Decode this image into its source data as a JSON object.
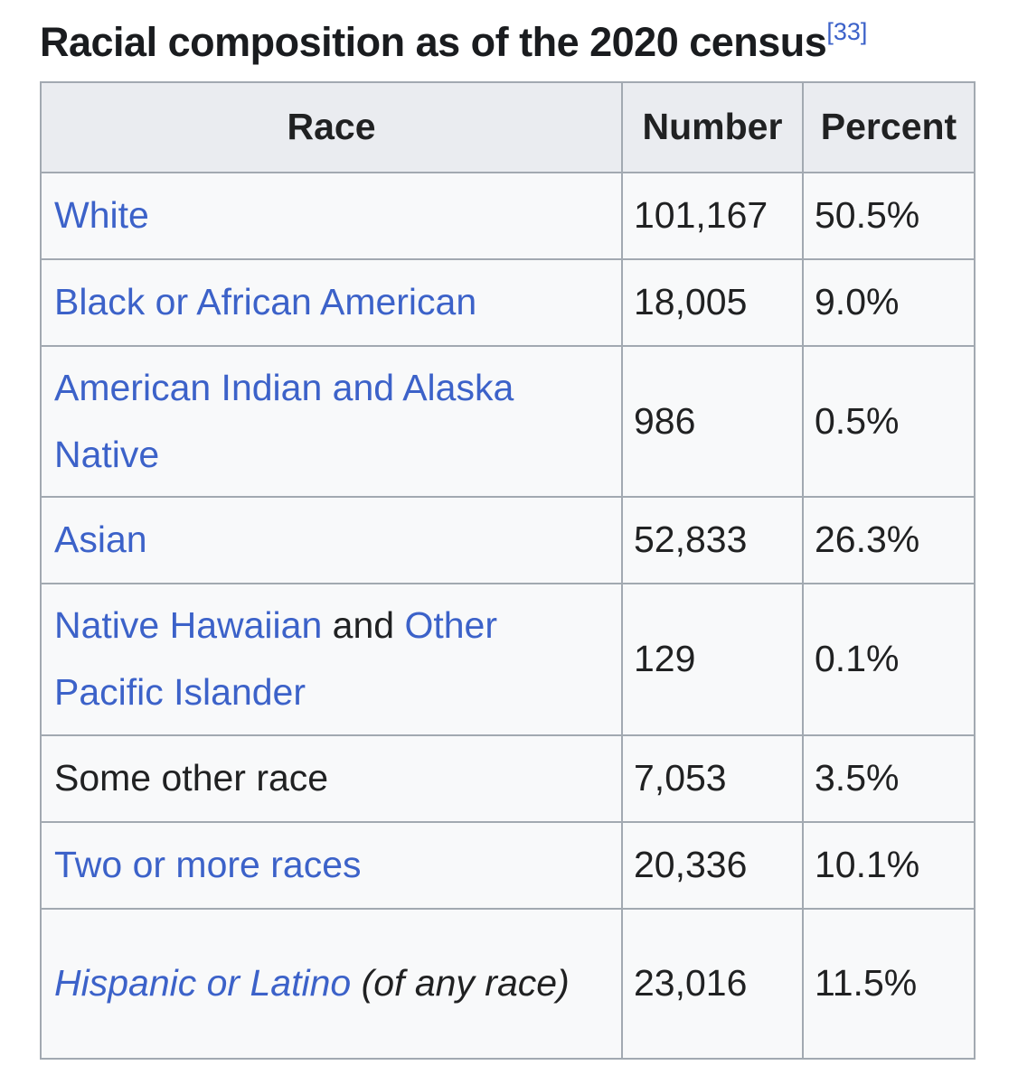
{
  "colors": {
    "link_blue": "#3c62c9",
    "header_background": "#eaecf0",
    "cell_background": "#f8f9fa",
    "border": "#a2a9b1",
    "text": "#202122",
    "page_background": "#ffffff"
  },
  "caption": {
    "text": "Racial composition as of the 2020 census",
    "reference": "[33]"
  },
  "table": {
    "headers": {
      "race": "Race",
      "number": "Number",
      "percent": "Percent"
    },
    "rows": [
      {
        "race": [
          {
            "text": "White",
            "link": true
          }
        ],
        "number": "101,167",
        "percent": "50.5%"
      },
      {
        "race": [
          {
            "text": "Black or African American",
            "link": true
          }
        ],
        "number": "18,005",
        "percent": "9.0%"
      },
      {
        "race": [
          {
            "text": "American Indian and Alaska Native",
            "link": true
          }
        ],
        "number": "986",
        "percent": "0.5%"
      },
      {
        "race": [
          {
            "text": "Asian",
            "link": true
          }
        ],
        "number": "52,833",
        "percent": "26.3%"
      },
      {
        "race": [
          {
            "text": "Native Hawaiian",
            "link": true
          },
          {
            "text": " and ",
            "link": false
          },
          {
            "text": "Other Pacific Islander",
            "link": true
          }
        ],
        "number": "129",
        "percent": "0.1%"
      },
      {
        "race": [
          {
            "text": "Some other race",
            "link": false
          }
        ],
        "number": "7,053",
        "percent": "3.5%"
      },
      {
        "race": [
          {
            "text": "Two or more races",
            "link": true
          }
        ],
        "number": "20,336",
        "percent": "10.1%"
      },
      {
        "race": [
          {
            "text": "Hispanic or Latino",
            "link": true,
            "italic": true
          },
          {
            "text": " (of any race)",
            "link": false,
            "italic": true
          }
        ],
        "number": "23,016",
        "percent": "11.5%"
      }
    ]
  }
}
